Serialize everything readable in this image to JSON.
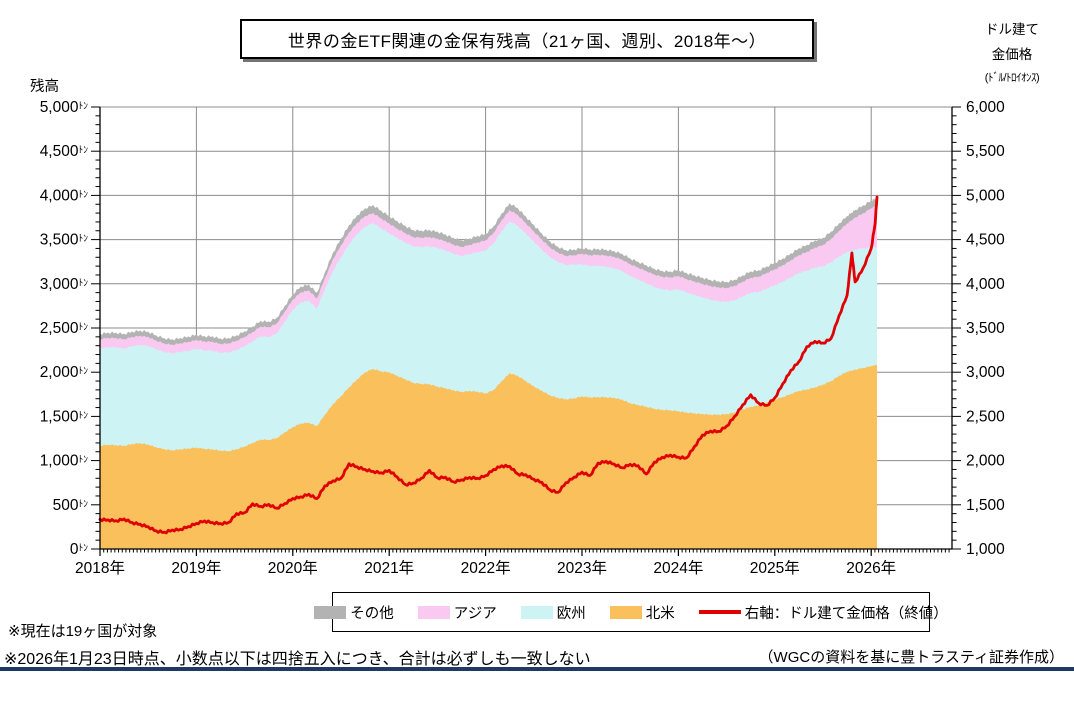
{
  "title": "世界の金ETF関連の金保有残高（21ヶ国、週別、2018年～）",
  "left_axis": {
    "label": "残高",
    "unit": "ﾄﾝ",
    "ticks": [
      "5,000",
      "4,500",
      "4,000",
      "3,500",
      "3,000",
      "2,500",
      "2,000",
      "1,500",
      "1,000",
      "500",
      "0"
    ],
    "min": 0,
    "max": 5000
  },
  "right_axis": {
    "label_line1": "ドル建て",
    "label_line2": "金価格",
    "label_line3": "(ﾄﾞﾙ/ﾄﾛｲｵﾝｽ)",
    "ticks": [
      "6,000",
      "5,500",
      "5,000",
      "4,500",
      "4,000",
      "3,500",
      "3,000",
      "2,500",
      "2,000",
      "1,500",
      "1,000"
    ],
    "min": 1000,
    "max": 6000
  },
  "x_axis": {
    "ticks": [
      "2018年",
      "2019年",
      "2020年",
      "2021年",
      "2022年",
      "2023年",
      "2024年",
      "2025年",
      "2026年"
    ]
  },
  "legend": {
    "items": [
      {
        "label": "その他",
        "color": "#b3b3b3",
        "type": "area"
      },
      {
        "label": "アジア",
        "color": "#fac9f1",
        "type": "area"
      },
      {
        "label": "欧州",
        "color": "#cdf3f5",
        "type": "area"
      },
      {
        "label": "北米",
        "color": "#fac05c",
        "type": "area"
      },
      {
        "label": "右軸：ドル建て金価格（終値）",
        "color": "#e00000",
        "type": "line"
      }
    ]
  },
  "footnotes": [
    "※現在は19ヶ国が対象",
    "※2026年1月23日時点、小数点以下は四捨五入につき、合計は必ずしも一致しない"
  ],
  "source": "（WGCの資料を基に豊トラスティ証券作成）",
  "colors": {
    "grid": "#8c8c8c",
    "axis": "#000000",
    "navy_rule": "#203864"
  },
  "chart_data": {
    "type": "area",
    "stacked": true,
    "grid": true,
    "legend_position": "bottom",
    "left_ylim": [
      0,
      5000
    ],
    "right_ylim": [
      1000,
      6000
    ],
    "x_unit": "decimal_year",
    "x": [
      2018.0,
      2018.083,
      2018.167,
      2018.25,
      2018.333,
      2018.417,
      2018.5,
      2018.583,
      2018.667,
      2018.75,
      2018.833,
      2018.917,
      2019.0,
      2019.083,
      2019.167,
      2019.25,
      2019.333,
      2019.417,
      2019.5,
      2019.583,
      2019.667,
      2019.75,
      2019.833,
      2019.917,
      2020.0,
      2020.083,
      2020.167,
      2020.25,
      2020.333,
      2020.417,
      2020.5,
      2020.583,
      2020.667,
      2020.75,
      2020.833,
      2020.917,
      2021.0,
      2021.083,
      2021.167,
      2021.25,
      2021.333,
      2021.417,
      2021.5,
      2021.583,
      2021.667,
      2021.75,
      2021.833,
      2021.917,
      2022.0,
      2022.083,
      2022.167,
      2022.25,
      2022.333,
      2022.417,
      2022.5,
      2022.583,
      2022.667,
      2022.75,
      2022.833,
      2022.917,
      2023.0,
      2023.083,
      2023.167,
      2023.25,
      2023.333,
      2023.417,
      2023.5,
      2023.583,
      2023.667,
      2023.75,
      2023.833,
      2023.917,
      2024.0,
      2024.083,
      2024.167,
      2024.25,
      2024.333,
      2024.417,
      2024.5,
      2024.583,
      2024.667,
      2024.75,
      2024.833,
      2024.917,
      2025.0,
      2025.083,
      2025.167,
      2025.25,
      2025.333,
      2025.417,
      2025.5,
      2025.583,
      2025.667,
      2025.75,
      2025.8,
      2025.833,
      2025.917,
      2026.0,
      2026.04,
      2026.06
    ],
    "series": [
      {
        "name": "北米",
        "type": "area",
        "axis": "left",
        "color": "#fac05c",
        "values": [
          1170,
          1180,
          1175,
          1168,
          1188,
          1198,
          1182,
          1152,
          1130,
          1118,
          1128,
          1138,
          1148,
          1135,
          1128,
          1114,
          1108,
          1130,
          1160,
          1200,
          1240,
          1235,
          1255,
          1320,
          1380,
          1420,
          1430,
          1390,
          1520,
          1640,
          1730,
          1830,
          1920,
          2000,
          2040,
          2010,
          2000,
          1960,
          1920,
          1880,
          1870,
          1865,
          1838,
          1820,
          1795,
          1778,
          1788,
          1780,
          1760,
          1800,
          1900,
          1990,
          1960,
          1900,
          1840,
          1790,
          1740,
          1710,
          1695,
          1705,
          1727,
          1715,
          1720,
          1718,
          1710,
          1690,
          1650,
          1630,
          1610,
          1588,
          1575,
          1570,
          1560,
          1545,
          1535,
          1528,
          1522,
          1520,
          1527,
          1545,
          1580,
          1610,
          1625,
          1660,
          1693,
          1720,
          1755,
          1790,
          1805,
          1830,
          1860,
          1900,
          1960,
          2007,
          2020,
          2030,
          2050,
          2070,
          2080,
          2085
        ]
      },
      {
        "name": "欧州",
        "type": "area",
        "axis": "left",
        "color": "#cdf3f5",
        "values": [
          1100,
          1105,
          1108,
          1102,
          1108,
          1112,
          1118,
          1110,
          1100,
          1098,
          1103,
          1108,
          1118,
          1114,
          1118,
          1108,
          1118,
          1125,
          1138,
          1150,
          1170,
          1165,
          1185,
          1255,
          1330,
          1370,
          1380,
          1330,
          1420,
          1510,
          1570,
          1620,
          1645,
          1650,
          1650,
          1620,
          1575,
          1560,
          1550,
          1545,
          1550,
          1560,
          1570,
          1560,
          1548,
          1540,
          1550,
          1580,
          1620,
          1660,
          1700,
          1720,
          1700,
          1670,
          1640,
          1600,
          1565,
          1540,
          1520,
          1515,
          1496,
          1490,
          1485,
          1478,
          1468,
          1455,
          1440,
          1420,
          1398,
          1378,
          1365,
          1358,
          1380,
          1360,
          1340,
          1320,
          1300,
          1285,
          1270,
          1272,
          1280,
          1290,
          1285,
          1288,
          1292,
          1305,
          1320,
          1335,
          1345,
          1355,
          1340,
          1345,
          1350,
          1355,
          1358,
          1360,
          1355,
          1345,
          1335,
          1325
        ]
      },
      {
        "name": "アジア",
        "type": "area",
        "axis": "left",
        "color": "#fac9f1",
        "values": [
          105,
          105,
          105,
          104,
          104,
          102,
          100,
          97,
          96,
          96,
          97,
          99,
          100,
          100,
          100,
          100,
          101,
          103,
          103,
          105,
          108,
          110,
          111,
          113,
          112,
          115,
          116,
          114,
          122,
          130,
          135,
          132,
          124,
          117,
          112,
          110,
          108,
          106,
          105,
          104,
          104,
          105,
          105,
          103,
          102,
          100,
          103,
          108,
          112,
          118,
          122,
          125,
          122,
          118,
          114,
          112,
          108,
          105,
          103,
          105,
          120,
          120,
          125,
          126,
          128,
          130,
          133,
          135,
          138,
          140,
          142,
          145,
          150,
          150,
          152,
          153,
          154,
          155,
          157,
          160,
          165,
          170,
          172,
          176,
          180,
          186,
          192,
          200,
          212,
          225,
          240,
          262,
          290,
          320,
          345,
          360,
          395,
          440,
          465,
          482
        ]
      },
      {
        "name": "その他",
        "type": "area",
        "axis": "left",
        "color": "#b3b3b3",
        "values": [
          60,
          60,
          60,
          60,
          60,
          60,
          60,
          60,
          60,
          60,
          60,
          60,
          60,
          60,
          60,
          60,
          60,
          61,
          62,
          63,
          63,
          64,
          64,
          64,
          64,
          66,
          66,
          65,
          70,
          74,
          77,
          82,
          86,
          88,
          90,
          88,
          86,
          84,
          82,
          80,
          80,
          80,
          79,
          77,
          76,
          75,
          75,
          75,
          74,
          75,
          76,
          78,
          76,
          74,
          72,
          70,
          68,
          66,
          64,
          64,
          65,
          65,
          66,
          66,
          66,
          66,
          66,
          66,
          66,
          66,
          66,
          67,
          70,
          70,
          70,
          70,
          70,
          70,
          70,
          71,
          72,
          73,
          73,
          74,
          75,
          76,
          78,
          79,
          80,
          81,
          82,
          83,
          85,
          86,
          87,
          87,
          88,
          88,
          85,
          95
        ]
      },
      {
        "name": "右軸：ドル建て金価格（終値）",
        "type": "line",
        "axis": "right",
        "color": "#e00000",
        "values": [
          1335,
          1330,
          1320,
          1340,
          1300,
          1280,
          1252,
          1205,
          1190,
          1215,
          1222,
          1255,
          1290,
          1318,
          1300,
          1288,
          1300,
          1400,
          1412,
          1512,
          1482,
          1505,
          1462,
          1515,
          1572,
          1590,
          1620,
          1570,
          1715,
          1772,
          1800,
          1965,
          1930,
          1900,
          1878,
          1862,
          1890,
          1815,
          1730,
          1745,
          1800,
          1890,
          1805,
          1812,
          1760,
          1783,
          1810,
          1800,
          1830,
          1900,
          1942,
          1935,
          1850,
          1840,
          1790,
          1755,
          1670,
          1640,
          1750,
          1812,
          1870,
          1832,
          1972,
          1992,
          1962,
          1920,
          1958,
          1942,
          1848,
          1982,
          2038,
          2062,
          2040,
          2030,
          2160,
          2290,
          2335,
          2330,
          2390,
          2500,
          2630,
          2745,
          2650,
          2625,
          2710,
          2870,
          3022,
          3120,
          3290,
          3350,
          3330,
          3380,
          3640,
          3870,
          4350,
          4020,
          4180,
          4400,
          4680,
          4980
        ]
      }
    ]
  }
}
